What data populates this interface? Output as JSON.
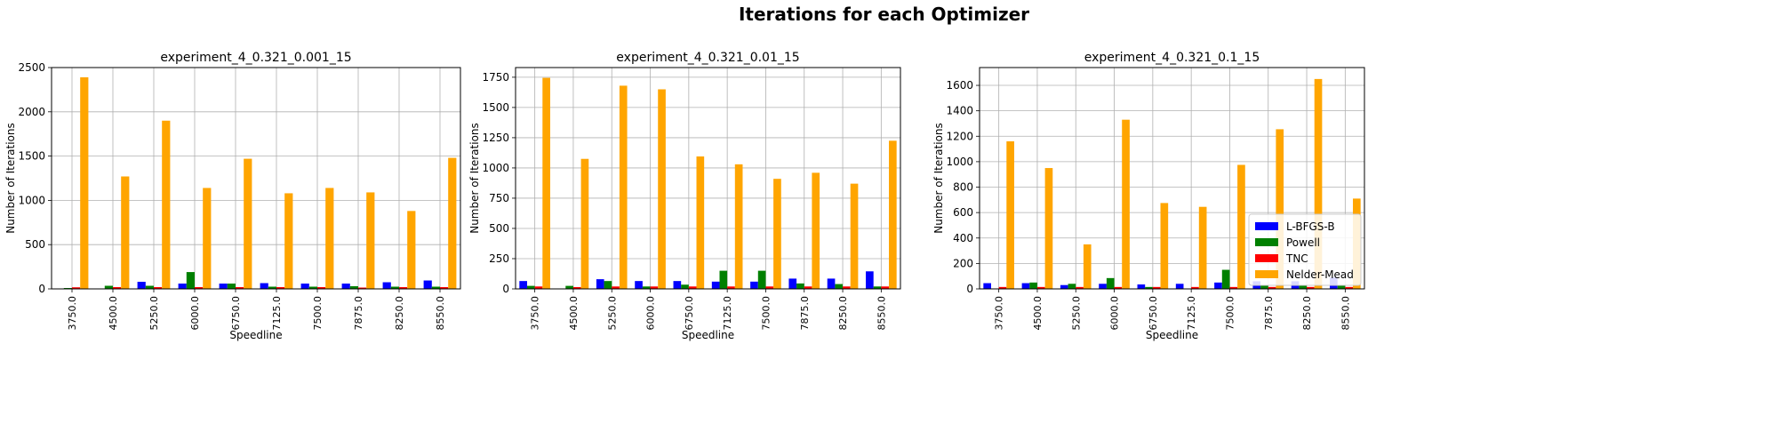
{
  "figure": {
    "title": "Iterations for each Optimizer"
  },
  "colors": {
    "L-BFGS-B": "#0000ff",
    "Powell": "#008000",
    "TNC": "#ff0000",
    "Nelder-Mead": "#ffa500"
  },
  "chart_data": [
    {
      "type": "bar",
      "title": "experiment_4_0.321_0.001_15",
      "xlabel": "Speedline",
      "ylabel": "Number of Iterations",
      "categories": [
        "3750.0",
        "4500.0",
        "5250.0",
        "6000.0",
        "6750.0",
        "7125.0",
        "7500.0",
        "7875.0",
        "8250.0",
        "8550.0"
      ],
      "ylim": [
        0,
        2500
      ],
      "yticks": [
        0,
        500,
        1000,
        1500,
        2000,
        2500
      ],
      "ytick_labels": [
        "0",
        "500",
        "1000",
        "1500",
        "2000",
        "2500"
      ],
      "grid": true,
      "legend": "none",
      "series": [
        {
          "name": "L-BFGS-B",
          "values": [
            0,
            0,
            80,
            60,
            60,
            65,
            60,
            60,
            75,
            95
          ]
        },
        {
          "name": "Powell",
          "values": [
            10,
            35,
            35,
            190,
            60,
            25,
            25,
            30,
            25,
            25
          ]
        },
        {
          "name": "TNC",
          "values": [
            18,
            20,
            20,
            20,
            20,
            20,
            20,
            15,
            20,
            20
          ]
        },
        {
          "name": "Nelder-Mead",
          "values": [
            2390,
            1270,
            1900,
            1140,
            1470,
            1080,
            1140,
            1090,
            880,
            1480
          ]
        }
      ]
    },
    {
      "type": "bar",
      "title": "experiment_4_0.321_0.01_15",
      "xlabel": "Speedline",
      "ylabel": "Number of Iterations",
      "categories": [
        "3750.0",
        "4500.0",
        "5250.0",
        "6000.0",
        "6750.0",
        "7125.0",
        "7500.0",
        "7875.0",
        "8250.0",
        "8550.0"
      ],
      "ylim": [
        0,
        1830
      ],
      "yticks": [
        0,
        250,
        500,
        750,
        1000,
        1250,
        1500,
        1750
      ],
      "ytick_labels": [
        "0",
        "250",
        "500",
        "750",
        "1000",
        "1250",
        "1500",
        "1750"
      ],
      "grid": true,
      "legend": "none",
      "series": [
        {
          "name": "L-BFGS-B",
          "values": [
            65,
            0,
            80,
            65,
            65,
            60,
            60,
            85,
            85,
            145
          ]
        },
        {
          "name": "Powell",
          "values": [
            25,
            25,
            65,
            20,
            35,
            150,
            150,
            45,
            40,
            20
          ]
        },
        {
          "name": "TNC",
          "values": [
            20,
            15,
            20,
            20,
            20,
            20,
            20,
            20,
            20,
            20
          ]
        },
        {
          "name": "Nelder-Mead",
          "values": [
            1745,
            1075,
            1680,
            1650,
            1095,
            1030,
            910,
            960,
            870,
            1225
          ]
        }
      ]
    },
    {
      "type": "bar",
      "title": "experiment_4_0.321_0.1_15",
      "xlabel": "Speedline",
      "ylabel": "Number of Iterations",
      "categories": [
        "3750.0",
        "4500.0",
        "5250.0",
        "6000.0",
        "6750.0",
        "7125.0",
        "7500.0",
        "7875.0",
        "8250.0",
        "8550.0"
      ],
      "ylim": [
        0,
        1740
      ],
      "yticks": [
        0,
        200,
        400,
        600,
        800,
        1000,
        1200,
        1400,
        1600
      ],
      "ytick_labels": [
        "0",
        "200",
        "400",
        "600",
        "800",
        "1000",
        "1200",
        "1400",
        "1600"
      ],
      "grid": true,
      "legend": "lower right",
      "series": [
        {
          "name": "L-BFGS-B",
          "values": [
            45,
            45,
            30,
            40,
            35,
            40,
            50,
            60,
            60,
            90
          ]
        },
        {
          "name": "Powell",
          "values": [
            0,
            50,
            40,
            85,
            15,
            0,
            150,
            25,
            30,
            30
          ]
        },
        {
          "name": "TNC",
          "values": [
            15,
            15,
            15,
            15,
            15,
            15,
            15,
            15,
            15,
            15
          ]
        },
        {
          "name": "Nelder-Mead",
          "values": [
            1160,
            950,
            350,
            1330,
            675,
            645,
            975,
            1255,
            1650,
            710
          ]
        }
      ]
    }
  ]
}
